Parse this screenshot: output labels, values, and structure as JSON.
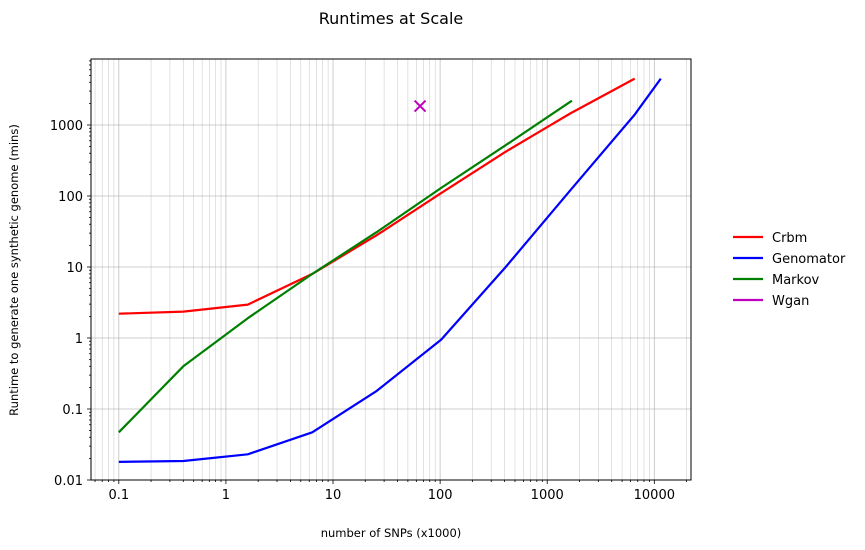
{
  "chart_data": {
    "type": "line",
    "title": "Runtimes at Scale",
    "xlabel": "number of SNPs (x1000)",
    "ylabel": "Runtime to generate one synthetic genome (mins)",
    "xscale": "log",
    "yscale": "log",
    "xlim": [
      0.055,
      22000
    ],
    "ylim": [
      0.01,
      8500
    ],
    "xticks": [
      0.1,
      1,
      10,
      100,
      1000,
      10000
    ],
    "xtick_labels": [
      "0.1",
      "1",
      "10",
      "100",
      "1000",
      "10000"
    ],
    "yticks": [
      0.01,
      0.1,
      1,
      10,
      100,
      1000
    ],
    "ytick_labels": [
      "0.01",
      "0.1",
      "1",
      "10",
      "100",
      "1000"
    ],
    "grid": true,
    "legend_position": "right",
    "series": [
      {
        "name": "Crbm",
        "color": "#ff0000",
        "marker": "none",
        "x": [
          0.1,
          0.4,
          1.6,
          6.4,
          25.6,
          102.4,
          409.6,
          1638.4,
          6553.6
        ],
        "y": [
          2.2,
          2.35,
          2.95,
          8.0,
          28.0,
          110.0,
          420.0,
          1450.0,
          4500.0
        ]
      },
      {
        "name": "Genomator",
        "color": "#0000ff",
        "marker": "none",
        "x": [
          0.1,
          0.4,
          1.6,
          6.4,
          25.6,
          102.4,
          409.6,
          1638.4,
          6553.6,
          11500
        ],
        "y": [
          0.018,
          0.0185,
          0.023,
          0.047,
          0.18,
          0.95,
          10.0,
          120.0,
          1400.0,
          4500.0
        ]
      },
      {
        "name": "Markov",
        "color": "#008000",
        "marker": "none",
        "x": [
          0.1,
          0.4,
          1.6,
          6.4,
          25.6,
          102.4,
          409.6,
          1700
        ],
        "y": [
          0.047,
          0.4,
          1.9,
          8.0,
          31.0,
          130.0,
          520.0,
          2200.0
        ]
      },
      {
        "name": "Wgan",
        "color": "#bf00bf",
        "marker": "x",
        "x": [
          65
        ],
        "y": [
          1850
        ]
      }
    ]
  }
}
